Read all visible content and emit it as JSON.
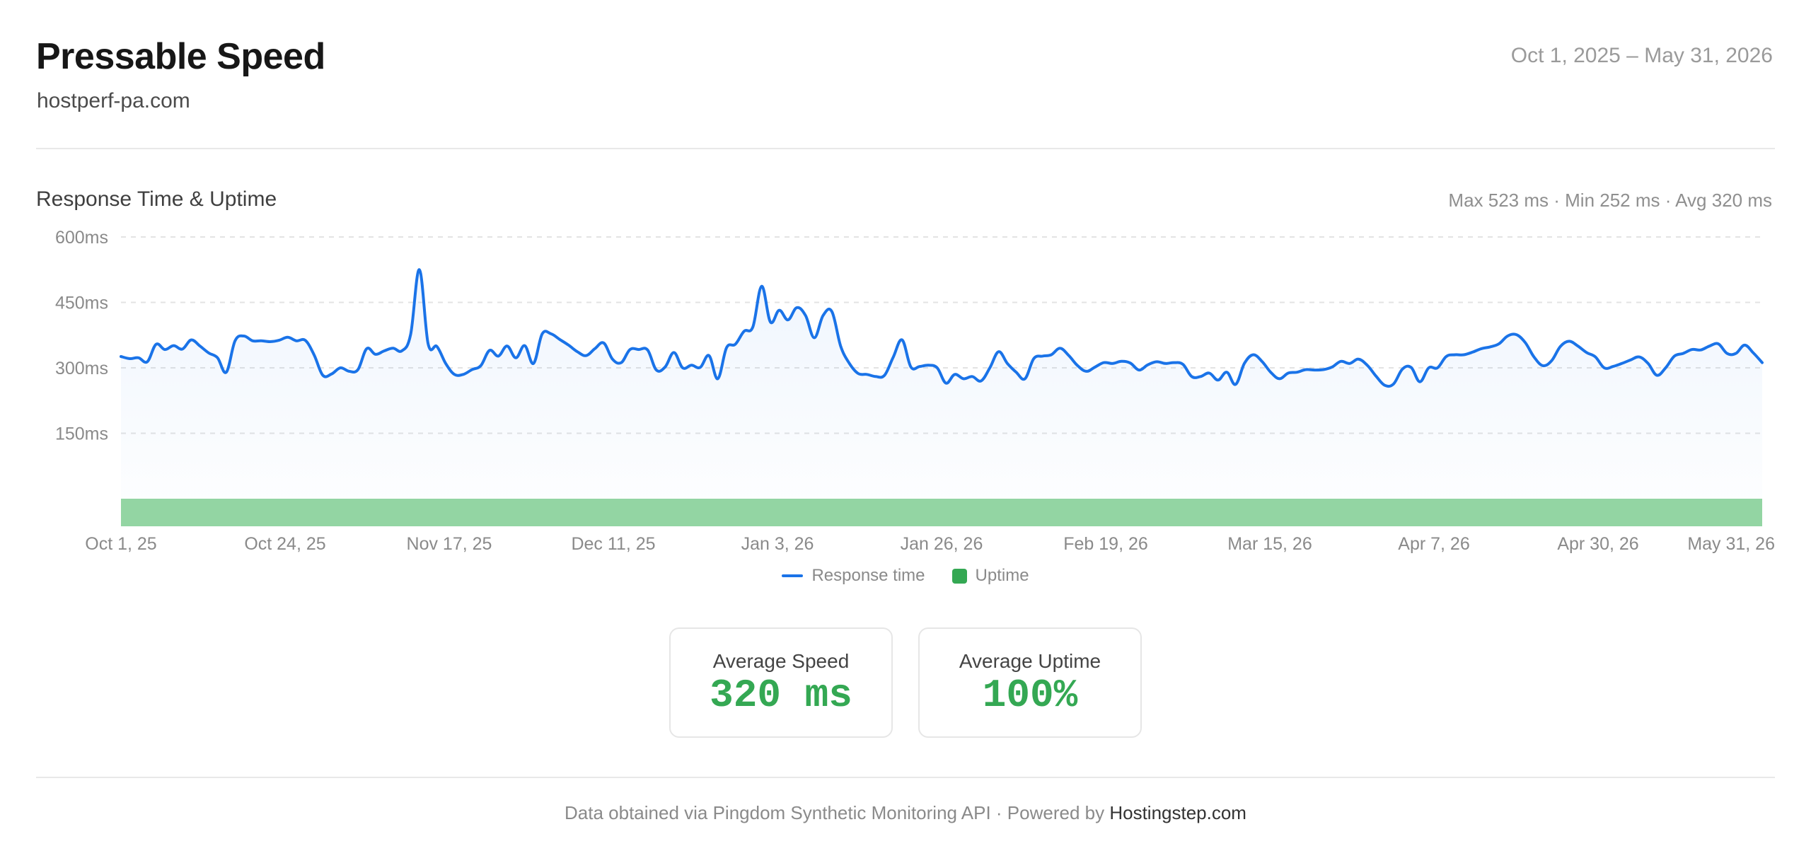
{
  "header": {
    "title": "Pressable Speed",
    "domain": "hostperf-pa.com",
    "date_range": "Oct 1, 2025 – May 31, 2026"
  },
  "chart_section": {
    "title": "Response Time & Uptime",
    "stats": "Max 523 ms · Min 252 ms · Avg 320 ms"
  },
  "legend": {
    "response_label": "Response time",
    "uptime_label": "Uptime"
  },
  "cards": {
    "speed_label": "Average Speed",
    "speed_value": "320 ms",
    "uptime_label": "Average Uptime",
    "uptime_value": "100%"
  },
  "footer": {
    "text": "Data obtained via Pingdom Synthetic Monitoring API · Powered by ",
    "link": "Hostingstep.com"
  },
  "colors": {
    "line": "#1a73e8",
    "uptime_bar": "#93d5a3",
    "accent_green": "#34a853"
  },
  "chart_data": {
    "type": "line",
    "title": "Response Time & Uptime",
    "xlabel": "",
    "ylabel": "",
    "ylim": [
      0,
      600
    ],
    "y_ticks": [
      150,
      300,
      450,
      600
    ],
    "y_tick_labels": [
      "150ms",
      "300ms",
      "450ms",
      "600ms"
    ],
    "x_tick_labels": [
      "Oct 1, 25",
      "Oct 24, 25",
      "Nov 17, 25",
      "Dec 11, 25",
      "Jan 3, 26",
      "Jan 26, 26",
      "Feb 19, 26",
      "Mar 15, 26",
      "Apr 7, 26",
      "Apr 30, 26",
      "May 31, 26"
    ],
    "x_range": [
      "2025-10-01",
      "2026-05-31"
    ],
    "grid": true,
    "legend_position": "bottom",
    "series": [
      {
        "name": "Response time",
        "unit": "ms",
        "x_start": "2025-10-01",
        "x_end": "2026-05-31",
        "values": [
          326,
          321,
          323,
          314,
          354,
          342,
          351,
          343,
          364,
          350,
          334,
          323,
          290,
          362,
          373,
          362,
          362,
          360,
          363,
          370,
          362,
          363,
          330,
          283,
          286,
          300,
          292,
          296,
          344,
          331,
          339,
          345,
          339,
          376,
          525,
          355,
          349,
          310,
          285,
          285,
          296,
          305,
          340,
          327,
          350,
          323,
          351,
          310,
          378,
          378,
          365,
          352,
          337,
          328,
          344,
          357,
          320,
          312,
          342,
          342,
          341,
          295,
          302,
          335,
          300,
          306,
          301,
          328,
          275,
          346,
          354,
          384,
          394,
          487,
          405,
          432,
          410,
          438,
          420,
          369,
          420,
          429,
          350,
          310,
          287,
          285,
          280,
          283,
          325,
          364,
          302,
          303,
          306,
          300,
          265,
          285,
          275,
          280,
          270,
          300,
          337,
          310,
          290,
          275,
          321,
          327,
          330,
          345,
          328,
          305,
          292,
          302,
          312,
          310,
          315,
          311,
          295,
          307,
          314,
          310,
          312,
          308,
          280,
          280,
          288,
          272,
          290,
          262,
          310,
          330,
          315,
          290,
          275,
          288,
          290,
          296,
          295,
          296,
          302,
          315,
          310,
          320,
          306,
          281,
          260,
          263,
          297,
          301,
          268,
          300,
          300,
          326,
          330,
          330,
          336,
          344,
          348,
          355,
          373,
          376,
          358,
          325,
          305,
          316,
          349,
          361,
          350,
          335,
          325,
          300,
          303,
          310,
          318,
          325,
          310,
          283,
          300,
          327,
          333,
          342,
          341,
          350,
          355,
          333,
          333,
          352,
          334,
          312
        ]
      },
      {
        "name": "Uptime",
        "unit": "%",
        "values": [
          100
        ]
      }
    ]
  }
}
